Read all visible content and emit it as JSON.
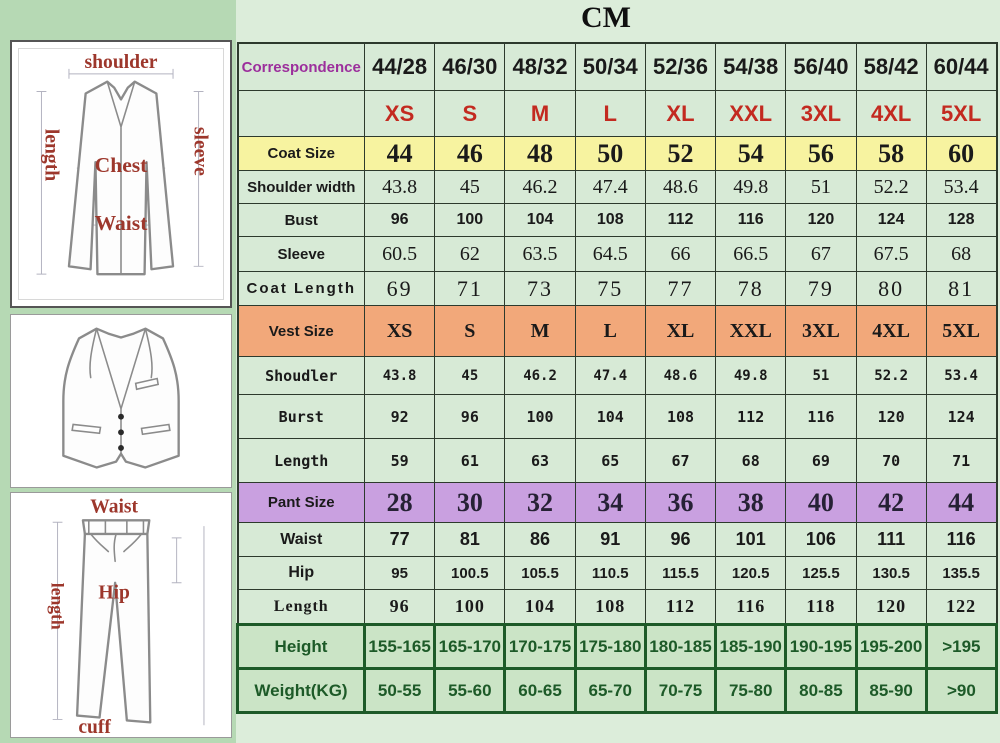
{
  "title": "CM",
  "colors": {
    "page_background": "#b6d9b4",
    "table_background": "#d7ead6",
    "coat_size_row": "#f7f3a0",
    "vest_size_row": "#f2a87a",
    "pant_size_row": "#c9a0e0",
    "body_rows": "#cbe4c6",
    "letter_size_text": "#c32a20",
    "correspondence_text": "#9c2f9c",
    "body_rows_text": "#1d5a28",
    "diagram_label_text": "#9d372c"
  },
  "diagrams": {
    "jacket": {
      "shoulder": "shoulder",
      "length": "length",
      "sleeve": "sleeve",
      "chest": "Chest",
      "waist": "Waist"
    },
    "pants": {
      "waist": "Waist",
      "length": "length",
      "hip": "Hip",
      "cuff": "cuff"
    }
  },
  "chart_data": {
    "type": "table",
    "title": "CM",
    "columns": [
      "Correspondence",
      "44/28",
      "46/30",
      "48/32",
      "50/34",
      "52/36",
      "54/38",
      "56/40",
      "58/42",
      "60/44"
    ],
    "rows": [
      {
        "id": "correspondence",
        "label": "Correspondence",
        "values": [
          "44/28",
          "46/30",
          "48/32",
          "50/34",
          "52/36",
          "54/38",
          "56/40",
          "58/42",
          "60/44"
        ]
      },
      {
        "id": "letter_size",
        "label": "",
        "values": [
          "XS",
          "S",
          "M",
          "L",
          "XL",
          "XXL",
          "3XL",
          "4XL",
          "5XL"
        ]
      },
      {
        "id": "coat_size",
        "label": "Coat Size",
        "values": [
          "44",
          "46",
          "48",
          "50",
          "52",
          "54",
          "56",
          "58",
          "60"
        ]
      },
      {
        "id": "shoulder_width",
        "label": "Shoulder width",
        "values": [
          "43.8",
          "45",
          "46.2",
          "47.4",
          "48.6",
          "49.8",
          "51",
          "52.2",
          "53.4"
        ]
      },
      {
        "id": "bust",
        "label": "Bust",
        "values": [
          "96",
          "100",
          "104",
          "108",
          "112",
          "116",
          "120",
          "124",
          "128"
        ]
      },
      {
        "id": "sleeve",
        "label": "Sleeve",
        "values": [
          "60.5",
          "62",
          "63.5",
          "64.5",
          "66",
          "66.5",
          "67",
          "67.5",
          "68"
        ]
      },
      {
        "id": "coat_length",
        "label": "Coat Length",
        "values": [
          "69",
          "71",
          "73",
          "75",
          "77",
          "78",
          "79",
          "80",
          "81"
        ]
      },
      {
        "id": "vest_size",
        "label": "Vest Size",
        "values": [
          "XS",
          "S",
          "M",
          "L",
          "XL",
          "XXL",
          "3XL",
          "4XL",
          "5XL"
        ]
      },
      {
        "id": "vest_shoulder",
        "label": "Shoudler",
        "values": [
          "43.8",
          "45",
          "46.2",
          "47.4",
          "48.6",
          "49.8",
          "51",
          "52.2",
          "53.4"
        ]
      },
      {
        "id": "vest_bust",
        "label": "Burst",
        "values": [
          "92",
          "96",
          "100",
          "104",
          "108",
          "112",
          "116",
          "120",
          "124"
        ]
      },
      {
        "id": "vest_length",
        "label": "Length",
        "values": [
          "59",
          "61",
          "63",
          "65",
          "67",
          "68",
          "69",
          "70",
          "71"
        ]
      },
      {
        "id": "pant_size",
        "label": "Pant Size",
        "values": [
          "28",
          "30",
          "32",
          "34",
          "36",
          "38",
          "40",
          "42",
          "44"
        ]
      },
      {
        "id": "pant_waist",
        "label": "Waist",
        "values": [
          "77",
          "81",
          "86",
          "91",
          "96",
          "101",
          "106",
          "111",
          "116"
        ]
      },
      {
        "id": "hip",
        "label": "Hip",
        "values": [
          "95",
          "100.5",
          "105.5",
          "110.5",
          "115.5",
          "120.5",
          "125.5",
          "130.5",
          "135.5"
        ]
      },
      {
        "id": "pant_length",
        "label": "Length",
        "values": [
          "96",
          "100",
          "104",
          "108",
          "112",
          "116",
          "118",
          "120",
          "122"
        ]
      },
      {
        "id": "height",
        "label": "Height",
        "values": [
          "155-165",
          "165-170",
          "170-175",
          "175-180",
          "180-185",
          "185-190",
          "190-195",
          "195-200",
          ">195"
        ]
      },
      {
        "id": "weight",
        "label": "Weight(KG)",
        "values": [
          "50-55",
          "55-60",
          "60-65",
          "65-70",
          "70-75",
          "75-80",
          "80-85",
          "85-90",
          ">90"
        ]
      }
    ]
  }
}
